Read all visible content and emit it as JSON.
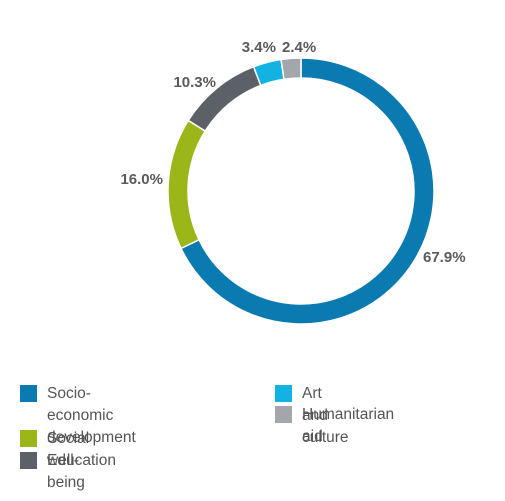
{
  "chart_data": {
    "type": "pie",
    "donut": true,
    "start": "12 o'clock",
    "direction": "clockwise",
    "legend_position": "bottom",
    "series": [
      {
        "name": "Socio-economic development",
        "value": 67.9,
        "label": "67.9%",
        "color": "#0a7ab0"
      },
      {
        "name": "Social well-being",
        "value": 16.0,
        "label": "16.0%",
        "color": "#9ab618"
      },
      {
        "name": "Education",
        "value": 10.3,
        "label": "10.3%",
        "color": "#5c6168"
      },
      {
        "name": "Art and culture",
        "value": 3.4,
        "label": "3.4%",
        "color": "#12b3e3"
      },
      {
        "name": "Humanitarian aid",
        "value": 2.4,
        "label": "2.4%",
        "color": "#a3a6ab"
      }
    ]
  },
  "legend": {
    "items": [
      {
        "label": "Socio-economic\ndevelopment",
        "color": "#0a7ab0"
      },
      {
        "label": "Social well-being",
        "color": "#9ab618"
      },
      {
        "label": "Education",
        "color": "#5c6168"
      },
      {
        "label": "Art and culture",
        "color": "#12b3e3"
      },
      {
        "label": "Humanitarian aid",
        "color": "#a3a6ab"
      }
    ]
  }
}
